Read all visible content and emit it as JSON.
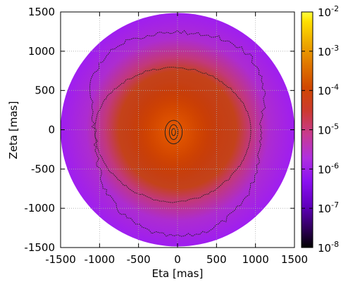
{
  "chart_data": {
    "type": "heatmap",
    "title": "",
    "xlabel": "Eta [mas]",
    "ylabel": "Zeta [mas]",
    "xlim": [
      -1500,
      1500
    ],
    "ylim": [
      -1500,
      1500
    ],
    "x_ticks": [
      -1500,
      -1000,
      -500,
      0,
      500,
      1000,
      1500
    ],
    "y_ticks": [
      -1500,
      -1000,
      -500,
      0,
      500,
      1000,
      1500
    ],
    "x_tick_labels": [
      "-1500",
      "-1000",
      "-500",
      "0",
      "500",
      "1000",
      "1500"
    ],
    "y_tick_labels": [
      "-1500",
      "-1000",
      "-500",
      "0",
      "500",
      "1000",
      "1500"
    ],
    "grid": true,
    "disk_radius": 1500,
    "center": [
      -50,
      -30
    ],
    "colorbar": {
      "scale": "log",
      "range": [
        1e-08,
        0.01
      ],
      "ticks": [
        {
          "base": "10",
          "exp": "-8",
          "value": 1e-08
        },
        {
          "base": "10",
          "exp": "-7",
          "value": 1e-07
        },
        {
          "base": "10",
          "exp": "-6",
          "value": 1e-06
        },
        {
          "base": "10",
          "exp": "-5",
          "value": 1e-05
        },
        {
          "base": "10",
          "exp": "-4",
          "value": 0.0001
        },
        {
          "base": "10",
          "exp": "-3",
          "value": 0.001
        },
        {
          "base": "10",
          "exp": "-2",
          "value": 0.01
        }
      ],
      "colors": [
        "#000000",
        "#3a0060",
        "#7a00d8",
        "#b030ff",
        "#c83cc8",
        "#e04a40",
        "#c83a00",
        "#e07000",
        "#f0a000",
        "#ffd800",
        "#ffff60"
      ]
    },
    "contours": [
      {
        "name": "",
        "rx": 110,
        "ry": 150
      },
      {
        "name": "",
        "rx": 55,
        "ry": 95
      },
      {
        "name": "",
        "rx": 25,
        "ry": 45
      }
    ]
  }
}
